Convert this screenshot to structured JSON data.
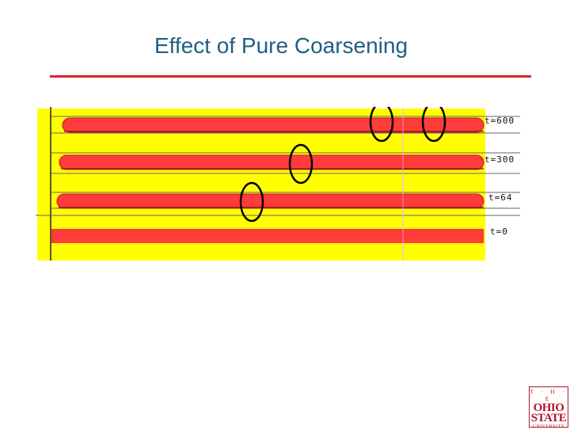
{
  "slide": {
    "title": "Effect of Pure Coarsening"
  },
  "figure": {
    "time_labels": [
      "t=600",
      "t=300",
      "t=64",
      "t=0"
    ],
    "colors": {
      "background": "#ffff00",
      "stripe": "#ff3b3b",
      "stripe_edge": "#c8102e",
      "circle": "#000000",
      "rule": "#d9262c"
    },
    "circled_features": 4
  },
  "logo": {
    "line1": "T · H · E",
    "line2": "OHIO",
    "line3": "STATE",
    "line4": "UNIVERSITY"
  }
}
